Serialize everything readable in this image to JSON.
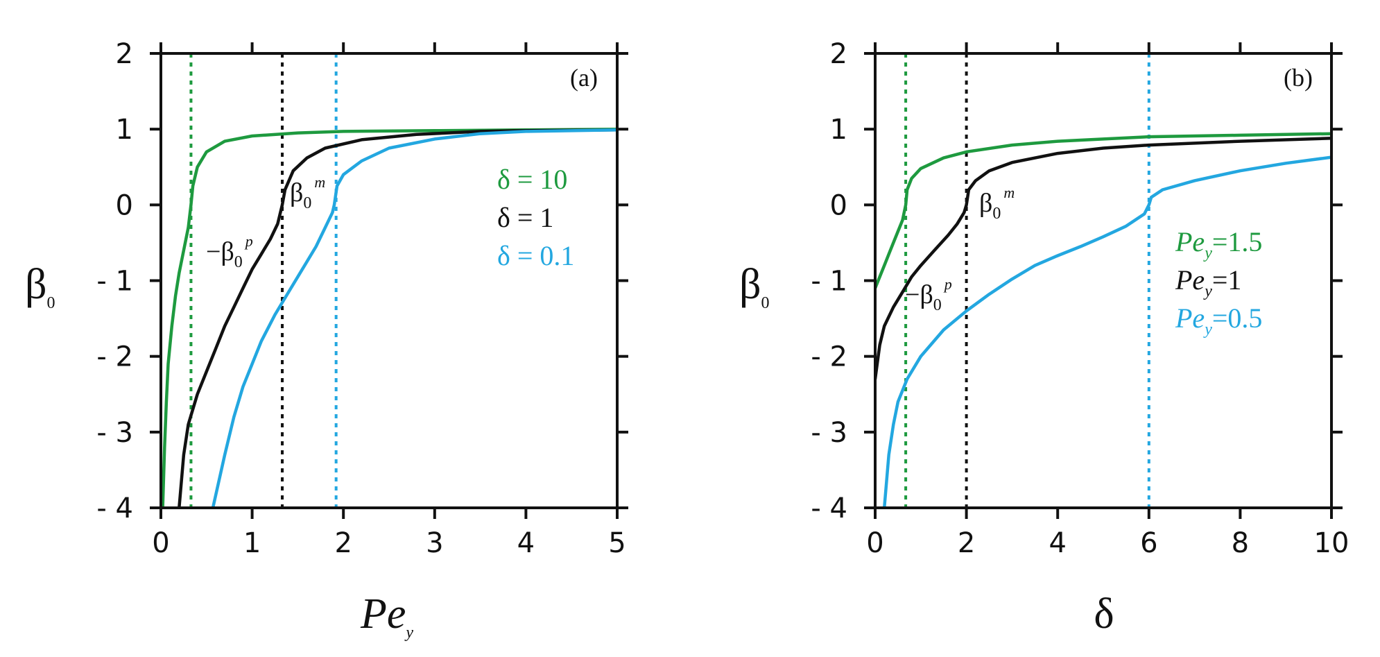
{
  "chart_data": [
    {
      "panel": "(a)",
      "type": "line",
      "xlabel": "Pe",
      "xlabel_sub": "y",
      "ylabel": "β",
      "ylabel_sub": "0",
      "xlim": [
        0,
        5
      ],
      "ylim": [
        -4,
        2
      ],
      "xticks": [
        0,
        1,
        2,
        3,
        4,
        5
      ],
      "yticks": [
        2,
        1,
        0,
        -1,
        -2,
        -3,
        -4
      ],
      "series": [
        {
          "name": "δ = 10",
          "color": "#1e9a3f",
          "points": [
            [
              0.02,
              -4.0
            ],
            [
              0.04,
              -3.2
            ],
            [
              0.06,
              -2.6
            ],
            [
              0.08,
              -2.1
            ],
            [
              0.12,
              -1.6
            ],
            [
              0.16,
              -1.2
            ],
            [
              0.2,
              -0.9
            ],
            [
              0.25,
              -0.6
            ],
            [
              0.3,
              -0.3
            ],
            [
              0.33,
              0.0
            ],
            [
              0.35,
              0.25
            ],
            [
              0.4,
              0.5
            ],
            [
              0.5,
              0.7
            ],
            [
              0.7,
              0.84
            ],
            [
              1.0,
              0.91
            ],
            [
              1.5,
              0.95
            ],
            [
              2.0,
              0.97
            ],
            [
              3.0,
              0.98
            ],
            [
              4.0,
              0.99
            ],
            [
              5.0,
              1.0
            ]
          ]
        },
        {
          "name": "δ = 1",
          "color": "#111111",
          "points": [
            [
              0.2,
              -4.0
            ],
            [
              0.25,
              -3.3
            ],
            [
              0.3,
              -2.9
            ],
            [
              0.4,
              -2.5
            ],
            [
              0.5,
              -2.2
            ],
            [
              0.6,
              -1.9
            ],
            [
              0.7,
              -1.6
            ],
            [
              0.8,
              -1.35
            ],
            [
              0.9,
              -1.1
            ],
            [
              1.0,
              -0.85
            ],
            [
              1.1,
              -0.65
            ],
            [
              1.2,
              -0.45
            ],
            [
              1.28,
              -0.25
            ],
            [
              1.33,
              0.0
            ],
            [
              1.36,
              0.2
            ],
            [
              1.45,
              0.45
            ],
            [
              1.6,
              0.62
            ],
            [
              1.8,
              0.75
            ],
            [
              2.2,
              0.86
            ],
            [
              2.8,
              0.93
            ],
            [
              3.5,
              0.97
            ],
            [
              4.0,
              0.98
            ],
            [
              5.0,
              0.99
            ]
          ]
        },
        {
          "name": "δ = 0.1",
          "color": "#23a7e0",
          "points": [
            [
              0.57,
              -4.0
            ],
            [
              0.7,
              -3.3
            ],
            [
              0.8,
              -2.8
            ],
            [
              0.9,
              -2.4
            ],
            [
              1.0,
              -2.1
            ],
            [
              1.1,
              -1.8
            ],
            [
              1.25,
              -1.45
            ],
            [
              1.4,
              -1.15
            ],
            [
              1.55,
              -0.85
            ],
            [
              1.7,
              -0.55
            ],
            [
              1.8,
              -0.3
            ],
            [
              1.88,
              -0.1
            ],
            [
              1.9,
              0.0
            ],
            [
              1.93,
              0.25
            ],
            [
              2.0,
              0.4
            ],
            [
              2.2,
              0.58
            ],
            [
              2.5,
              0.75
            ],
            [
              3.0,
              0.87
            ],
            [
              3.5,
              0.94
            ],
            [
              4.0,
              0.97
            ],
            [
              5.0,
              0.99
            ]
          ]
        }
      ],
      "vlines": [
        {
          "x": 0.33,
          "color": "#1e9a3f"
        },
        {
          "x": 1.33,
          "color": "#111111"
        },
        {
          "x": 1.92,
          "color": "#23a7e0"
        }
      ],
      "legend": [
        {
          "label": "δ = 10",
          "color": "#1e9a3f"
        },
        {
          "label": "δ = 1",
          "color": "#111111"
        },
        {
          "label": "δ = 0.1",
          "color": "#23a7e0"
        }
      ],
      "annotations": {
        "m": {
          "base": "β",
          "sub": "0",
          "sup": "m"
        },
        "p": {
          "prefix": "−",
          "base": "β",
          "sub": "0",
          "sup": "p"
        }
      }
    },
    {
      "panel": "(b)",
      "type": "line",
      "xlabel": "δ",
      "ylabel": "β",
      "ylabel_sub": "0",
      "xlim": [
        0,
        10
      ],
      "ylim": [
        -4,
        2
      ],
      "xticks": [
        0,
        2,
        4,
        6,
        8,
        10
      ],
      "yticks": [
        2,
        1,
        0,
        -1,
        -2,
        -3,
        -4
      ],
      "series": [
        {
          "name": "Pe_y = 1.5",
          "color": "#1e9a3f",
          "points": [
            [
              0.0,
              -1.1
            ],
            [
              0.1,
              -0.95
            ],
            [
              0.2,
              -0.8
            ],
            [
              0.3,
              -0.65
            ],
            [
              0.4,
              -0.5
            ],
            [
              0.5,
              -0.35
            ],
            [
              0.6,
              -0.2
            ],
            [
              0.67,
              0.0
            ],
            [
              0.7,
              0.2
            ],
            [
              0.8,
              0.35
            ],
            [
              1.0,
              0.48
            ],
            [
              1.5,
              0.62
            ],
            [
              2.0,
              0.7
            ],
            [
              3.0,
              0.79
            ],
            [
              4.0,
              0.84
            ],
            [
              5.0,
              0.87
            ],
            [
              6.0,
              0.9
            ],
            [
              8.0,
              0.92
            ],
            [
              10.0,
              0.94
            ]
          ]
        },
        {
          "name": "Pe_y = 1",
          "color": "#111111",
          "points": [
            [
              0.0,
              -2.3
            ],
            [
              0.1,
              -1.85
            ],
            [
              0.2,
              -1.6
            ],
            [
              0.4,
              -1.35
            ],
            [
              0.6,
              -1.15
            ],
            [
              0.8,
              -0.95
            ],
            [
              1.0,
              -0.8
            ],
            [
              1.3,
              -0.6
            ],
            [
              1.6,
              -0.4
            ],
            [
              1.8,
              -0.25
            ],
            [
              1.95,
              -0.1
            ],
            [
              2.0,
              0.0
            ],
            [
              2.05,
              0.2
            ],
            [
              2.2,
              0.32
            ],
            [
              2.5,
              0.45
            ],
            [
              3.0,
              0.56
            ],
            [
              4.0,
              0.68
            ],
            [
              5.0,
              0.75
            ],
            [
              6.0,
              0.79
            ],
            [
              8.0,
              0.84
            ],
            [
              10.0,
              0.88
            ]
          ]
        },
        {
          "name": "Pe_y = 0.5",
          "color": "#23a7e0",
          "points": [
            [
              0.2,
              -4.0
            ],
            [
              0.3,
              -3.3
            ],
            [
              0.4,
              -2.9
            ],
            [
              0.5,
              -2.6
            ],
            [
              0.7,
              -2.3
            ],
            [
              1.0,
              -2.0
            ],
            [
              1.5,
              -1.65
            ],
            [
              2.0,
              -1.4
            ],
            [
              2.5,
              -1.18
            ],
            [
              3.0,
              -0.98
            ],
            [
              3.5,
              -0.8
            ],
            [
              4.0,
              -0.67
            ],
            [
              4.5,
              -0.55
            ],
            [
              5.0,
              -0.42
            ],
            [
              5.5,
              -0.28
            ],
            [
              5.9,
              -0.12
            ],
            [
              6.0,
              0.0
            ],
            [
              6.05,
              0.1
            ],
            [
              6.3,
              0.2
            ],
            [
              7.0,
              0.32
            ],
            [
              8.0,
              0.45
            ],
            [
              9.0,
              0.55
            ],
            [
              10.0,
              0.63
            ]
          ]
        }
      ],
      "vlines": [
        {
          "x": 0.67,
          "color": "#1e9a3f"
        },
        {
          "x": 2.0,
          "color": "#111111"
        },
        {
          "x": 6.0,
          "color": "#23a7e0"
        }
      ],
      "legend": [
        {
          "label": "Pe",
          "sub": "y",
          "value": "=1.5",
          "color": "#1e9a3f"
        },
        {
          "label": "Pe",
          "sub": "y",
          "value": "=1",
          "color": "#111111"
        },
        {
          "label": "Pe",
          "sub": "y",
          "value": "=0.5",
          "color": "#23a7e0"
        }
      ],
      "annotations": {
        "m": {
          "base": "β",
          "sub": "0",
          "sup": "m"
        },
        "p": {
          "prefix": "−",
          "base": "β",
          "sub": "0",
          "sup": "p"
        }
      }
    }
  ]
}
